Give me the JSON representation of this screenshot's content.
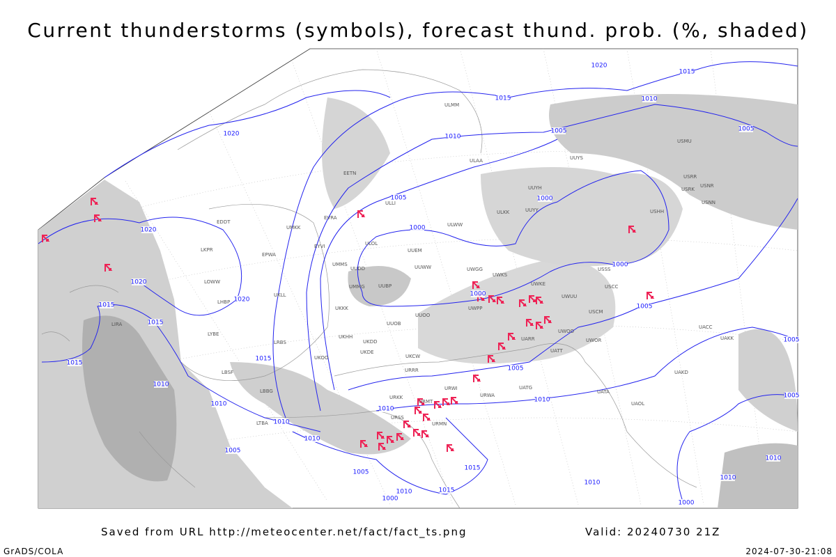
{
  "title": "Current thunderstorms (symbols), forecast thund. prob. (%, shaded)",
  "footer": {
    "source": "Saved from URL http://meteocenter.net/fact/fact_ts.png",
    "valid": "Valid: 20240730 21Z",
    "credit": "GrADS/COLA",
    "timestamp": "2024-07-30-21:08"
  },
  "isobar_labels": [
    "1020",
    "1020",
    "1020",
    "1020",
    "1015",
    "1015",
    "1015",
    "1015",
    "1010",
    "1010",
    "1010",
    "1010",
    "1005",
    "1005",
    "1000",
    "1010",
    "1015",
    "1015",
    "1010",
    "1005",
    "1000",
    "1000",
    "1005",
    "1010",
    "1010",
    "1005",
    "1000",
    "1000",
    "1015",
    "1010",
    "1005",
    "1010",
    "1015",
    "1020",
    "1005",
    "1005",
    "1005",
    "1010",
    "1010",
    "1000"
  ],
  "stations": [
    "UUEM",
    "UUWW",
    "UUBP",
    "UUDD",
    "UMMS",
    "UMMG",
    "UUOO",
    "UUOB",
    "UKKK",
    "UKHH",
    "UKDD",
    "UKDE",
    "UKCW",
    "URRR",
    "URKK",
    "URSS",
    "URMT",
    "URMN",
    "URWI",
    "URWA",
    "UATG",
    "UATA",
    "UAOL",
    "UACC",
    "UAKK",
    "UAKD",
    "USSS",
    "USCC",
    "USCM",
    "UWOO",
    "UARR",
    "UWOR",
    "UATT",
    "UWPP",
    "UWGG",
    "UWKS",
    "UWKE",
    "UWUU",
    "ULLI",
    "ULOL",
    "ULWW",
    "ULKK",
    "UUYY",
    "UUYH",
    "UUYS",
    "ULAA",
    "USRR",
    "USRK",
    "USNR",
    "USNN",
    "USHH",
    "USMU",
    "ULMM",
    "UMKK",
    "EVRA",
    "EETN",
    "EYVI",
    "EPWA",
    "LKPR",
    "LOWW",
    "LHBP",
    "LRBS",
    "UKOO",
    "LBSF",
    "LBBG",
    "LTBA",
    "LIRA",
    "LYBE",
    "EDDT",
    "UKLL"
  ]
}
